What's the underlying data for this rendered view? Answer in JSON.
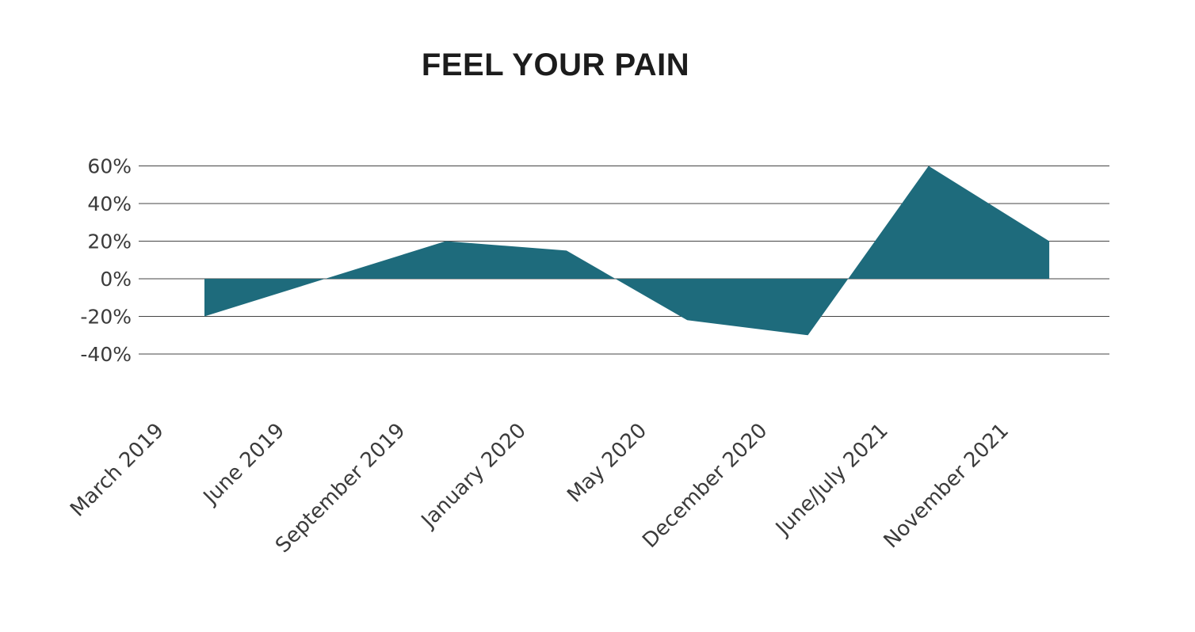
{
  "page": {
    "background": "#ffffff"
  },
  "chart_data": {
    "type": "area",
    "title": "FEEL YOUR PAIN",
    "categories": [
      "March 2019",
      "June 2019",
      "September 2019",
      "January 2020",
      "May 2020",
      "December 2020",
      "June/July 2021",
      "November 2021"
    ],
    "values": [
      -20,
      0,
      20,
      15,
      -22,
      -30,
      60,
      20
    ],
    "y_ticks": [
      60,
      40,
      20,
      0,
      -20,
      -40
    ],
    "y_tick_labels": [
      "60%",
      "40%",
      "20%",
      "0%",
      "-20%",
      "-40%"
    ],
    "ylim": [
      -50,
      70
    ],
    "xlabel": "",
    "ylabel": "",
    "grid": true,
    "legend": false,
    "baseline": 0,
    "fill_color": "#1e6b7c",
    "gridline_color": "#454545",
    "text_color": "#3b3b3b",
    "title_color": "#1c1c1c"
  }
}
